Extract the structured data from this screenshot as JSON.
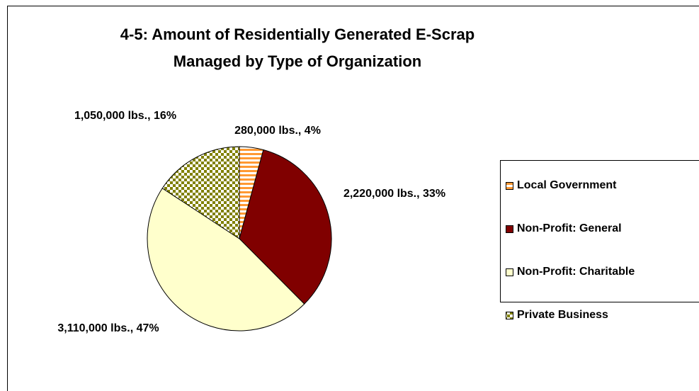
{
  "chart_data": {
    "type": "pie",
    "title": "4-5: Amount of Residentially Generated E-Scrap\nManaged by Type of Organization",
    "categories": [
      "Local Government",
      "Non-Profit: General",
      "Non-Profit: Charitable",
      "Private Business"
    ],
    "values": [
      280000,
      2220000,
      3110000,
      1050000
    ],
    "value_labels": [
      "280,000 lbs., 4%",
      "2,220,000 lbs., 33%",
      "3,110,000 lbs., 47%",
      "1,050,000 lbs., 16%"
    ],
    "colors": [
      "#ff9933",
      "#800000",
      "#ffffcc",
      "#808000"
    ],
    "patterns": [
      "stripes",
      "solid",
      "solid",
      "checker"
    ],
    "legend": "right"
  }
}
